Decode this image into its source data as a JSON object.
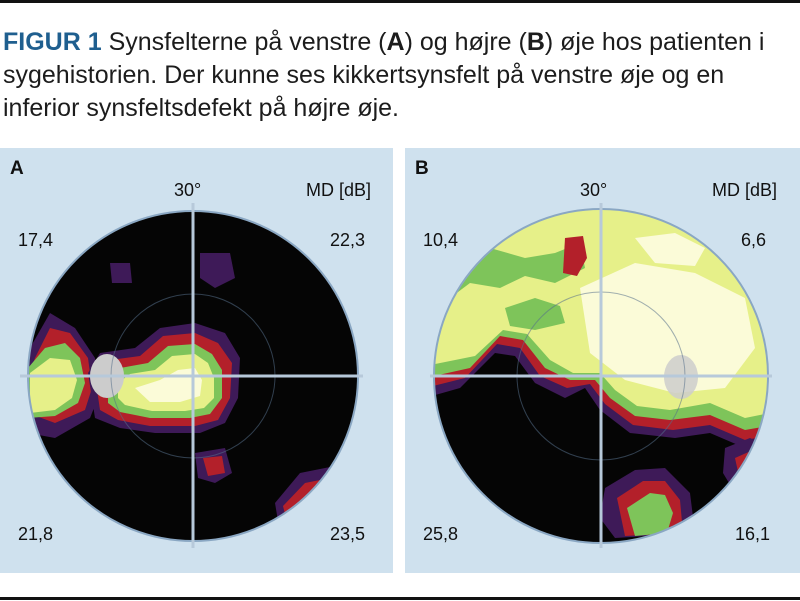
{
  "caption": {
    "figure_label": "FIGUR 1",
    "seg1": " Synsfelterne på venstre (",
    "a": "A",
    "seg2": ") og højre (",
    "b": "B",
    "seg3": ") øje hos patienten i sygehistorien. Der kunne ses kikkertsynsfelt på venstre øje og en inferior synsfeltsdefekt på højre øje."
  },
  "panel_a": {
    "label": "A",
    "degree": "30°",
    "md_label": "MD [dB]",
    "values": {
      "top_left": "17,4",
      "top_right": "22,3",
      "bottom_left": "21,8",
      "bottom_right": "23,5"
    }
  },
  "panel_b": {
    "label": "B",
    "degree": "30°",
    "md_label": "MD [dB]",
    "values": {
      "top_left": "10,4",
      "top_right": "6,6",
      "bottom_left": "25,8",
      "bottom_right": "16,1"
    }
  },
  "colors": {
    "panel_bg": "#cfe1ee",
    "black": "#050505",
    "purple": "#3e1a58",
    "red": "#b3202a",
    "green": "#7ec45a",
    "yellow": "#e6f089",
    "pale": "#fbfbd8",
    "blind_spot": "#cccccc",
    "caption_accent": "#1f5f8f"
  }
}
